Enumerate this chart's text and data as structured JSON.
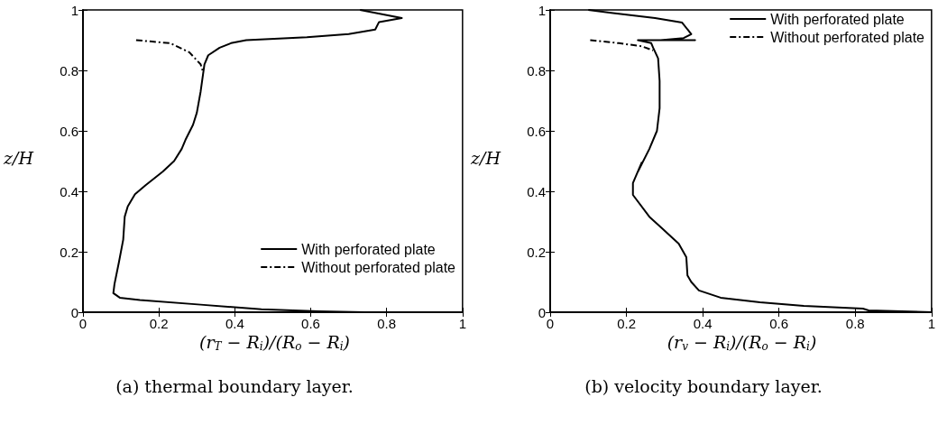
{
  "chart_data": [
    {
      "type": "line",
      "title": "(a) thermal boundary layer.",
      "xlabel": "(r$_{T}$ − R$_{i}$)/(R$_{o}$ − R$_{i}$)",
      "ylabel": "z/H",
      "xlim": [
        0,
        1
      ],
      "xticks": [
        0,
        0.2,
        0.4,
        0.6,
        0.8,
        1
      ],
      "ylim": [
        0,
        1
      ],
      "yticks": [
        0,
        0.2,
        0.4,
        0.6,
        0.8,
        1
      ],
      "grid": false,
      "legend": "bottom right",
      "marker": "none",
      "series": [
        {
          "name": "With perforated plate",
          "color": "#000000",
          "line_style": "solid",
          "x": [
            0.73,
            0.84,
            0.78,
            0.77,
            0.7,
            0.59,
            0.43,
            0.39,
            0.36,
            0.33,
            0.32,
            0.31,
            0.3,
            0.29,
            0.27,
            0.26,
            0.24,
            0.21,
            0.18,
            0.165,
            0.137,
            0.118,
            0.11,
            0.106,
            0.095,
            0.083,
            0.08,
            0.097,
            0.15,
            0.31,
            0.47,
            0.62,
            0.74
          ],
          "values": [
            1,
            0.973,
            0.96,
            0.935,
            0.92,
            0.91,
            0.9,
            0.89,
            0.875,
            0.85,
            0.82,
            0.73,
            0.66,
            0.62,
            0.57,
            0.54,
            0.5,
            0.465,
            0.435,
            0.42,
            0.39,
            0.35,
            0.316,
            0.24,
            0.167,
            0.093,
            0.063,
            0.048,
            0.04,
            0.025,
            0.01,
            0.003,
            0
          ]
        },
        {
          "name": "Without perforated plate",
          "color": "#000000",
          "line_style": "dashdot",
          "x": [
            0.14,
            0.23,
            0.28,
            0.31,
            0.315
          ],
          "values": [
            0.9,
            0.89,
            0.86,
            0.82,
            0.8
          ]
        }
      ]
    },
    {
      "type": "line",
      "title": "(b) velocity boundary layer.",
      "xlabel": "(r$_{v}$ − R$_{i}$)/(R$_{o}$ − R$_{i}$)",
      "ylabel": "z/H",
      "xlim": [
        0,
        1
      ],
      "xticks": [
        0,
        0.2,
        0.4,
        0.6,
        0.8,
        1
      ],
      "ylim": [
        0,
        1
      ],
      "yticks": [
        0,
        0.2,
        0.4,
        0.6,
        0.8,
        1
      ],
      "grid": false,
      "legend": "top right",
      "marker": "none",
      "series": [
        {
          "name": "With perforated plate",
          "color": "#000000",
          "line_style": "solid",
          "x": [
            0.1,
            0.16,
            0.275,
            0.346,
            0.37,
            0.35,
            0.29,
            0.38,
            0.23,
            0.265,
            0.27,
            0.283,
            0.287,
            0.287,
            0.28,
            0.26,
            0.23,
            0.24,
            0.217,
            0.217,
            0.26,
            0.306,
            0.337,
            0.357,
            0.36,
            0.37,
            0.39,
            0.447,
            0.55,
            0.665,
            0.82,
            0.835,
            1
          ],
          "values": [
            1,
            0.99,
            0.973,
            0.958,
            0.92,
            0.907,
            0.9,
            0.9,
            0.9,
            0.89,
            0.875,
            0.84,
            0.765,
            0.675,
            0.6,
            0.54,
            0.465,
            0.495,
            0.427,
            0.388,
            0.316,
            0.263,
            0.227,
            0.182,
            0.122,
            0.1,
            0.072,
            0.048,
            0.033,
            0.021,
            0.012,
            0.006,
            0
          ]
        },
        {
          "name": "Without perforated plate",
          "color": "#000000",
          "line_style": "dashdot",
          "x": [
            0.105,
            0.18,
            0.24,
            0.27
          ],
          "values": [
            0.9,
            0.89,
            0.88,
            0.866
          ]
        }
      ]
    }
  ]
}
